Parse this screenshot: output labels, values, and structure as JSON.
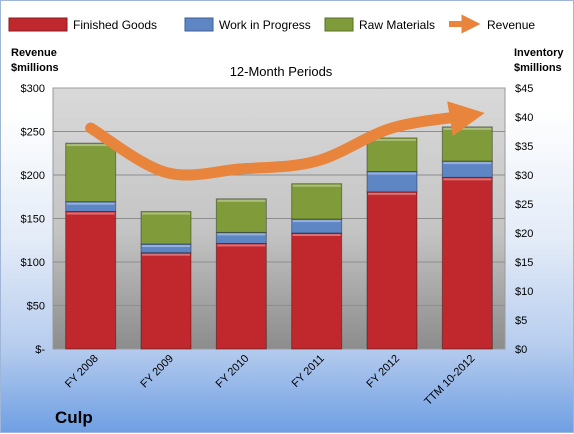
{
  "company": "Culp",
  "chart_data": {
    "type": "bar",
    "subtitle": "12-Month Periods",
    "categories": [
      "FY 2008",
      "FY 2009",
      "FY 2010",
      "FY 2011",
      "FY 2012",
      "TTM 10-2012"
    ],
    "stacked": true,
    "left_axis": {
      "label_line1": "Revenue",
      "label_line2": "$millions",
      "range": [
        0,
        300
      ],
      "ticks": [
        "$-",
        "$50",
        "$100",
        "$150",
        "$200",
        "$250",
        "$300"
      ]
    },
    "right_axis": {
      "label_line1": "Inventory",
      "label_line2": "$millions",
      "range": [
        0,
        45
      ],
      "ticks": [
        "$0",
        "$5",
        "$10",
        "$15",
        "$20",
        "$25",
        "$30",
        "$35",
        "$40",
        "$45"
      ]
    },
    "series": [
      {
        "name": "Finished Goods",
        "kind": "bar",
        "axis": "right",
        "color": "#c0282d",
        "values": [
          23.7,
          16.6,
          18.2,
          20.0,
          27.1,
          29.6
        ]
      },
      {
        "name": "Work in Progress",
        "kind": "bar",
        "axis": "right",
        "color": "#5f86c4",
        "values": [
          1.7,
          1.5,
          1.9,
          2.4,
          3.5,
          2.8
        ]
      },
      {
        "name": "Raw Materials",
        "kind": "bar",
        "axis": "right",
        "color": "#7f9b3a",
        "values": [
          10.1,
          5.6,
          5.8,
          6.1,
          5.8,
          5.9
        ]
      },
      {
        "name": "Revenue",
        "kind": "line",
        "axis": "left",
        "color": "#e9843c",
        "values": [
          254,
          203,
          207,
          216,
          254,
          268
        ]
      }
    ],
    "grid": true,
    "legend_position": "top"
  }
}
